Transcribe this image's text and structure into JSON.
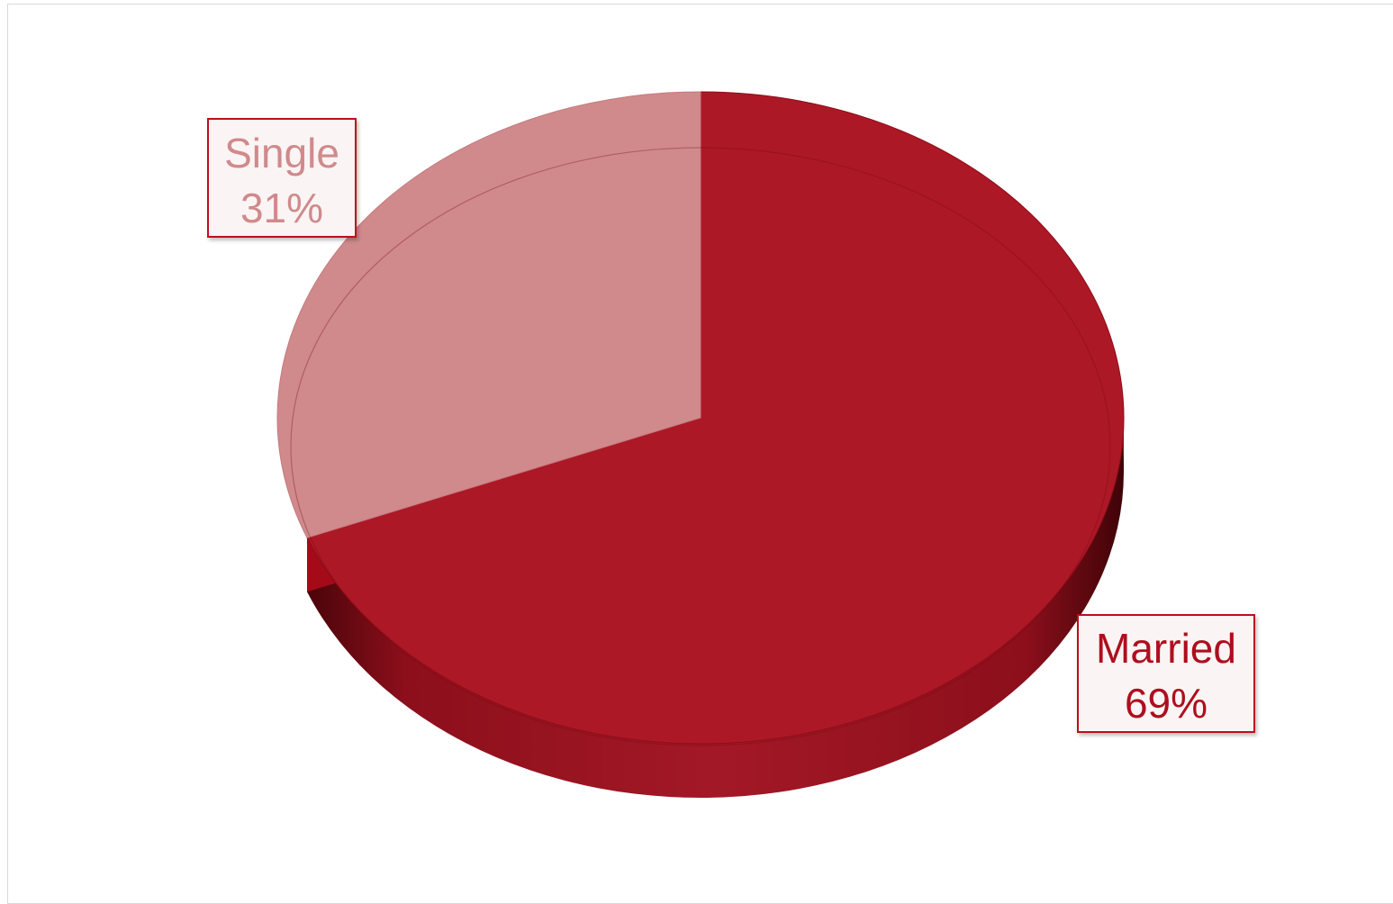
{
  "chart_data": {
    "type": "pie",
    "variant": "3d",
    "categories": [
      "Single",
      "Married"
    ],
    "values": [
      31,
      69
    ],
    "labels": [
      "31%",
      "69%"
    ],
    "title": "",
    "legend": "none",
    "data_labels": "outside-boxed",
    "colors": {
      "Single": "#d08a8c",
      "Married": "#ad1826",
      "Married_side": "#a50a19",
      "Married_side_dark": "#6b0a12",
      "label_border_single": "#c0101f",
      "label_border_married": "#c0101f",
      "label_text_single": "#d08a8c",
      "label_text_married": "#ad0f1e",
      "label_fill": "#fbf4f4"
    }
  }
}
